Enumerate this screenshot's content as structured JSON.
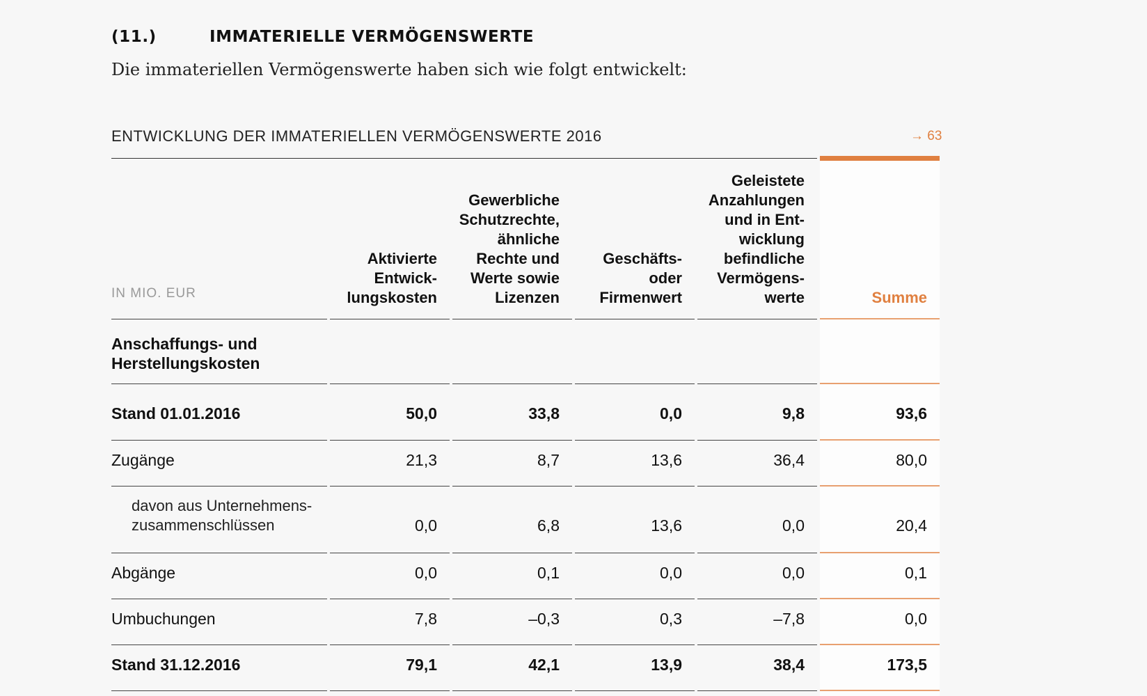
{
  "section": {
    "number": "(11.)",
    "title": "IMMATERIELLE VERMÖGENSWERTE",
    "intro": "Die immateriellen Vermögenswerte haben sich wie folgt entwickelt:"
  },
  "table": {
    "title": "ENTWICKLUNG DER IMMATERIELLEN VERMÖGENSWERTE 2016",
    "reference": "→ 63",
    "unit_label": "IN MIO. EUR",
    "columns": [
      "Aktivierte Entwick-\nlungskosten",
      "Gewerbliche Schutzrechte, ähnliche Rechte und Werte sowie Lizenzen",
      "Geschäfts-\noder Firmenwert",
      "Geleistete Anzahlungen und in Ent-\nwicklung befindliche Vermögens-\nwerte",
      "Summe"
    ],
    "group_heading": "Anschaffungs- und Herstellungskosten",
    "rows": [
      {
        "label": "Stand 01.01.2016",
        "bold": true,
        "values": [
          "50,0",
          "33,8",
          "0,0",
          "9,8",
          "93,6"
        ]
      },
      {
        "label": "Zugänge",
        "bold": false,
        "values": [
          "21,3",
          "8,7",
          "13,6",
          "36,4",
          "80,0"
        ]
      },
      {
        "label": "davon aus Unternehmens-\nzusammenschlüssen",
        "bold": false,
        "indent": true,
        "values": [
          "0,0",
          "6,8",
          "13,6",
          "0,0",
          "20,4"
        ]
      },
      {
        "label": "Abgänge",
        "bold": false,
        "values": [
          "0,0",
          "0,1",
          "0,0",
          "0,0",
          "0,1"
        ]
      },
      {
        "label": "Umbuchungen",
        "bold": false,
        "values": [
          "7,8",
          "–0,3",
          "0,3",
          "–7,8",
          "0,0"
        ]
      },
      {
        "label": "Stand 31.12.2016",
        "bold": true,
        "values": [
          "79,1",
          "42,1",
          "13,9",
          "38,4",
          "173,5"
        ]
      }
    ]
  },
  "colors": {
    "accent": "#e08040",
    "rule": "#444444",
    "sum_rule": "#e8a070",
    "muted": "#999999"
  }
}
